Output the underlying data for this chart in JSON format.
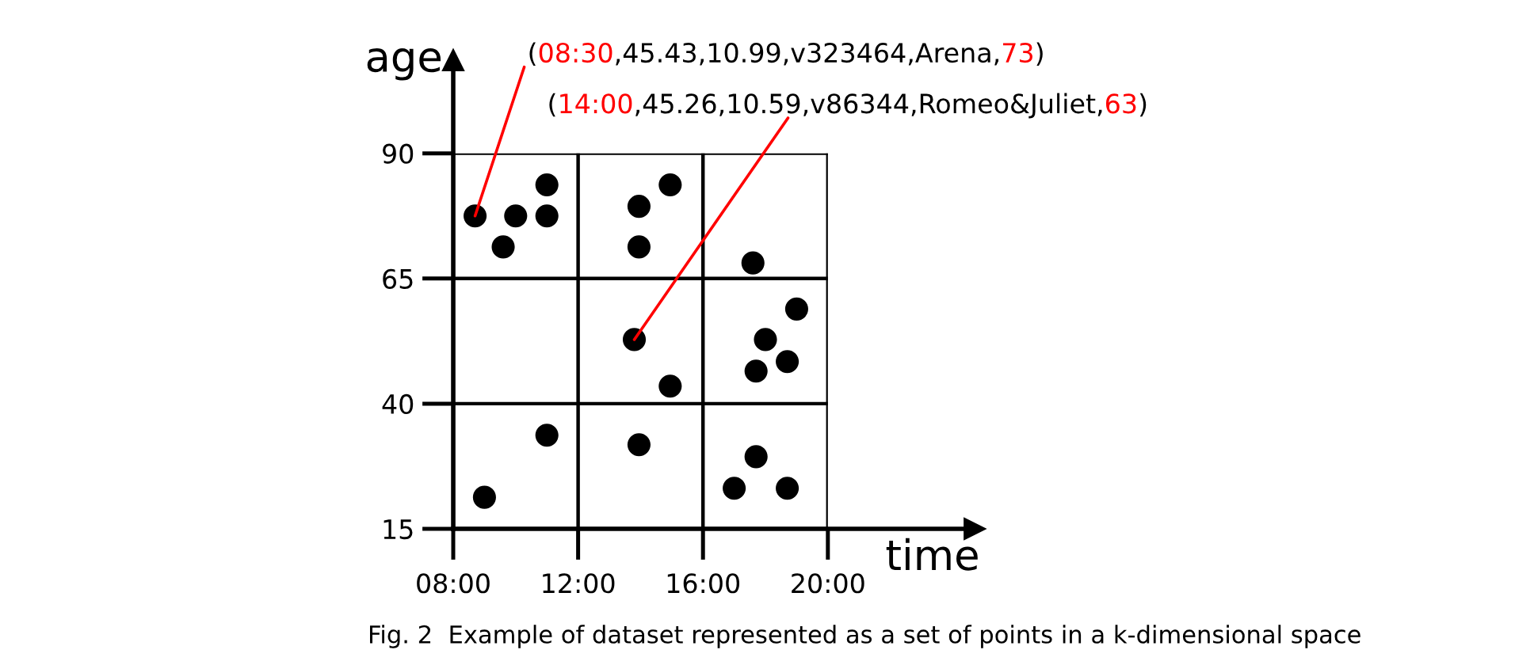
{
  "chart_data": {
    "type": "scatter",
    "xlabel": "time",
    "ylabel": "age",
    "x": [
      8.7,
      9.6,
      10.0,
      11.0,
      11.0,
      13.95,
      13.95,
      14.95,
      17.6,
      13.8,
      14.95,
      19.0,
      18.0,
      18.7,
      17.7,
      11.0,
      13.95,
      9.0,
      17.7,
      17.0,
      18.7
    ],
    "values": [
      77.5,
      71.3,
      77.5,
      83.7,
      77.5,
      79.4,
      71.3,
      83.7,
      68.1,
      52.8,
      43.5,
      58.9,
      52.8,
      48.4,
      46.5,
      33.7,
      31.8,
      21.3,
      29.4,
      23.1,
      23.1
    ],
    "color": "#000000",
    "marker": "circle",
    "xlim": [
      8,
      24.7
    ],
    "ylim": [
      15,
      108.6
    ],
    "xticks": [
      {
        "value": 8,
        "label": "08:00"
      },
      {
        "value": 12,
        "label": "12:00"
      },
      {
        "value": 16,
        "label": "16:00"
      },
      {
        "value": 20,
        "label": "20:00"
      }
    ],
    "yticks": [
      15,
      40,
      65,
      90
    ],
    "grid": true,
    "annotations": [
      {
        "text": "(08:30,45.43,10.99,v323464,Arena,73)",
        "x": 8.7,
        "y": 77.5
      },
      {
        "text": "(14:00,45.26,10.59,v86344,Romeo&Juliet,63)",
        "x": 13.8,
        "y": 52.8
      },
      "Fig. 2  Example of dataset represented as a set of points in a k-dimensional space"
    ]
  }
}
